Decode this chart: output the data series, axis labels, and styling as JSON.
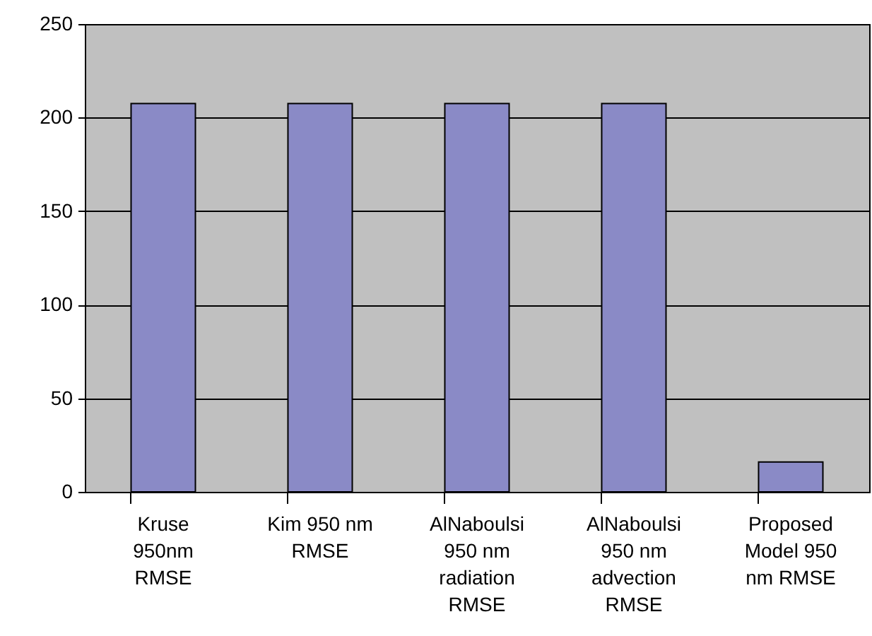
{
  "chart_data": {
    "type": "bar",
    "categories": [
      "Kruse 950nm RMSE",
      "Kim 950 nm RMSE",
      "AlNaboulsi 950 nm radiation RMSE",
      "AlNaboulsi 950 nm advection RMSE",
      "Proposed Model 950 nm RMSE"
    ],
    "values": [
      207.5,
      207.5,
      207.5,
      207.5,
      16
    ],
    "color": "#8a8ac6",
    "ylim": [
      0,
      250
    ],
    "yticks": [
      0,
      50,
      100,
      150,
      200,
      250
    ],
    "grid": "y"
  }
}
